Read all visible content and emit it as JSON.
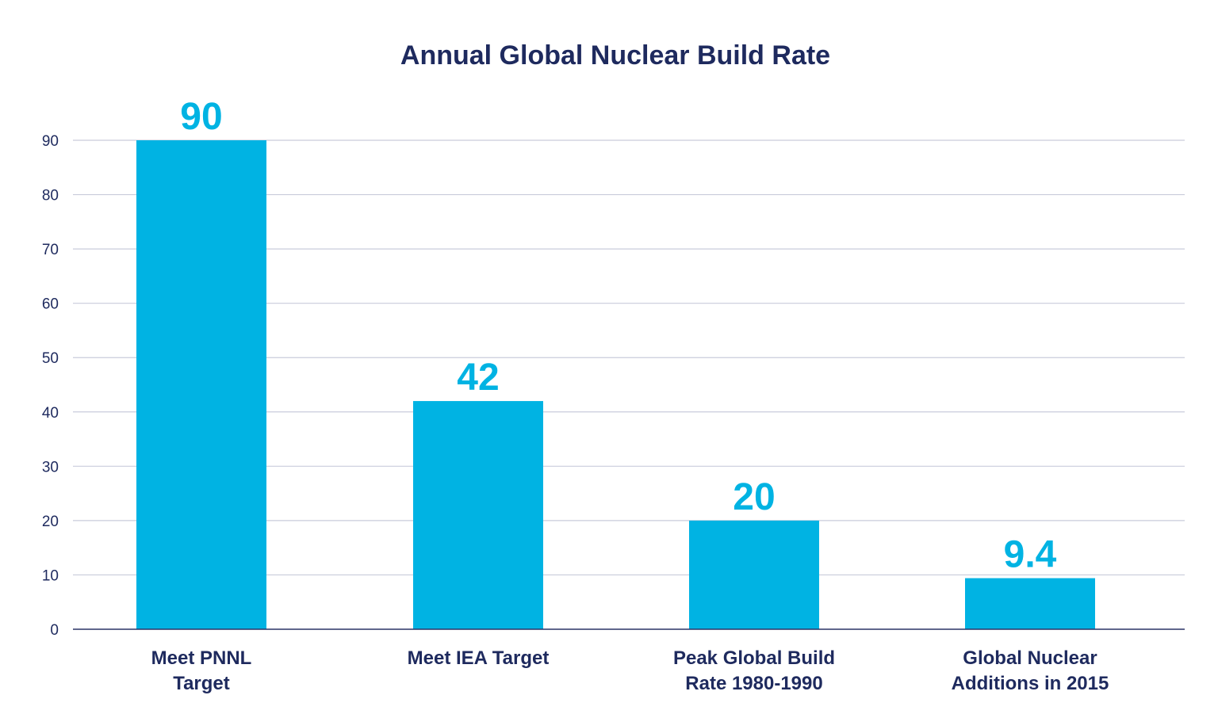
{
  "chart_data": {
    "type": "bar",
    "title": "Annual Global Nuclear Build Rate",
    "xlabel": "",
    "ylabel": "",
    "categories": [
      [
        "Meet PNNL",
        "Target"
      ],
      [
        "Meet IEA Target"
      ],
      [
        "Peak Global Build",
        "Rate 1980-1990"
      ],
      [
        "Global Nuclear",
        "Additions in 2015"
      ]
    ],
    "values": [
      90,
      42,
      20,
      9.4
    ],
    "data_labels": [
      "90",
      "42",
      "20",
      "9.4"
    ],
    "ylim": [
      0,
      90
    ],
    "yticks": [
      0,
      10,
      20,
      30,
      40,
      50,
      60,
      70,
      80,
      90
    ],
    "grid": true,
    "legend": "none",
    "colors": {
      "bar": "#00b3e3",
      "data_label": "#00b3e3",
      "text": "#1e2a5e",
      "grid": "#c9ccdb",
      "axis": "#2b3467"
    }
  }
}
